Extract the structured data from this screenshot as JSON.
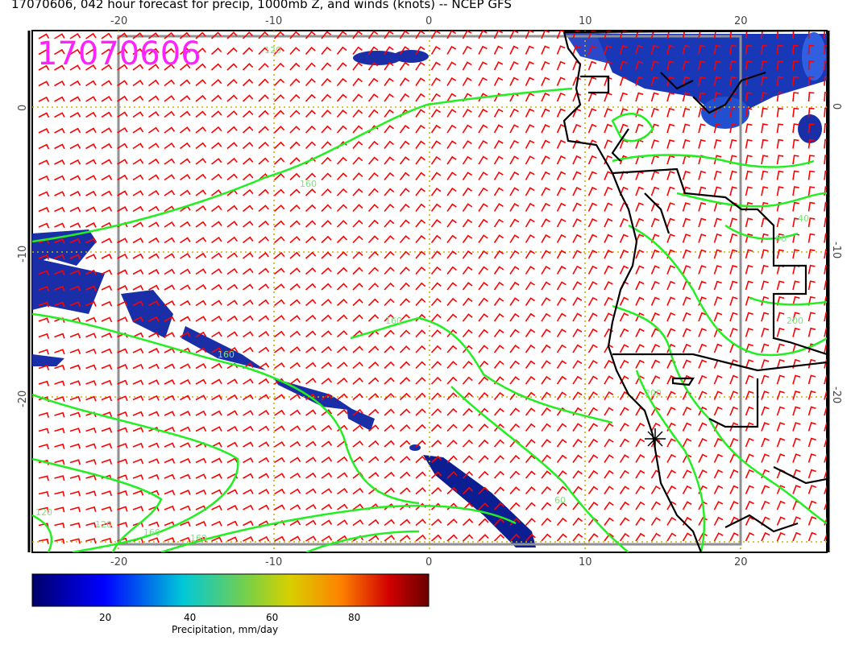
{
  "title": "17070606, 042 hour forecast for precip, 1000mb Z, and winds (knots) -- NCEP GFS",
  "stamp": "17070606",
  "map": {
    "lon_ticks_bottom": [
      "-20",
      "-10",
      "0",
      "10",
      "20"
    ],
    "lon_ticks_top": [
      "-20",
      "-10",
      "0",
      "10",
      "20"
    ],
    "lat_ticks_left": [
      "0",
      "-10",
      "-20"
    ],
    "lat_ticks_right": [
      "0",
      "-10",
      "-20"
    ],
    "lon_range": [
      -26,
      26
    ],
    "lat_range": [
      -30,
      5
    ],
    "gridlines": "dotted yellow at 10 degree intervals",
    "wind_barb_color": "#ff0000",
    "contour_color": "#22ee22",
    "coast_color": "#000000",
    "contour_labels": [
      "120",
      "160",
      "160",
      "160",
      "160",
      "160",
      "120",
      "200",
      "40",
      "60",
      "200",
      "120",
      "60"
    ]
  },
  "colorbar": {
    "label": "Precipitation, mm/day",
    "ticks": [
      "20",
      "40",
      "60",
      "80"
    ],
    "colors": [
      "#000080",
      "#0000ff",
      "#00c8c8",
      "#7fcf3f",
      "#d0d000",
      "#ff8000",
      "#cc0000",
      "#700000"
    ]
  }
}
